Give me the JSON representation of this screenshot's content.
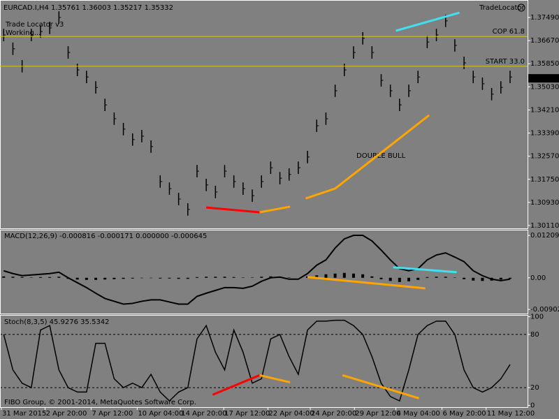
{
  "chart_data": [
    {
      "type": "ohlc",
      "title": "EURCAD.I,H4  1.35761 1.36003 1.35217 1.35332",
      "indicator_name": "Trade Locator v3",
      "status": "Working...",
      "brand": "TradeLocator",
      "annotation": "DOUBLE  BULL",
      "annotation_color": "#ffd700",
      "color": "#000000",
      "high": [
        1.3709,
        1.366,
        1.3598,
        1.3709,
        1.3721,
        1.3734,
        1.3771,
        1.3647,
        1.3585,
        1.356,
        1.3523,
        1.3461,
        1.3412,
        1.3375,
        1.3338,
        1.335,
        1.3313,
        1.3189,
        1.3164,
        1.3127,
        1.309,
        1.3226,
        1.3177,
        1.3152,
        1.3226,
        1.3189,
        1.3164,
        1.3139,
        1.3189,
        1.3238,
        1.3201,
        1.3214,
        1.3238,
        1.3276,
        1.3387,
        1.3412,
        1.3511,
        1.3585,
        1.3647,
        1.3697,
        1.3647,
        1.3548,
        1.3511,
        1.3461,
        1.3511,
        1.356,
        1.3684,
        1.3709,
        1.3759,
        1.3672,
        1.361,
        1.356,
        1.3536,
        1.3499,
        1.3523,
        1.356
      ],
      "low": [
        1.3665,
        1.3616,
        1.3554,
        1.3665,
        1.3677,
        1.369,
        1.3727,
        1.3603,
        1.3541,
        1.3516,
        1.3479,
        1.3417,
        1.3368,
        1.3331,
        1.3294,
        1.3306,
        1.3269,
        1.3145,
        1.312,
        1.3083,
        1.3046,
        1.3182,
        1.3133,
        1.3108,
        1.3182,
        1.3145,
        1.312,
        1.3095,
        1.3145,
        1.3194,
        1.3157,
        1.317,
        1.3194,
        1.3232,
        1.3343,
        1.3368,
        1.3467,
        1.3541,
        1.3603,
        1.3653,
        1.3603,
        1.3504,
        1.3467,
        1.3417,
        1.3467,
        1.3516,
        1.364,
        1.3665,
        1.3715,
        1.3628,
        1.3566,
        1.3516,
        1.3492,
        1.3455,
        1.3479,
        1.3516
      ],
      "close": [
        1.3687,
        1.3638,
        1.3576,
        1.3687,
        1.3699,
        1.3712,
        1.3749,
        1.3625,
        1.3563,
        1.3538,
        1.3501,
        1.3439,
        1.339,
        1.3353,
        1.3316,
        1.3328,
        1.3291,
        1.3167,
        1.3142,
        1.3105,
        1.3068,
        1.3204,
        1.3155,
        1.313,
        1.3204,
        1.3167,
        1.3142,
        1.3117,
        1.3167,
        1.3216,
        1.3179,
        1.3192,
        1.3216,
        1.3254,
        1.3365,
        1.339,
        1.3489,
        1.3563,
        1.3625,
        1.3675,
        1.3625,
        1.3526,
        1.3489,
        1.3439,
        1.3489,
        1.3538,
        1.3662,
        1.3687,
        1.3737,
        1.365,
        1.3588,
        1.3538,
        1.3514,
        1.3477,
        1.3501,
        1.3538
      ],
      "ylim": [
        1.3001,
        1.3811
      ],
      "yticks": [
        {
          "value": 1.3749,
          "label": "1.37490"
        },
        {
          "value": 1.3667,
          "label": "1.36670"
        },
        {
          "value": 1.3585,
          "label": "1.35850"
        },
        {
          "value": 1.3503,
          "label": "1.35030"
        },
        {
          "value": 1.3421,
          "label": "1.34210"
        },
        {
          "value": 1.3339,
          "label": "1.33390"
        },
        {
          "value": 1.3257,
          "label": "1.32570"
        },
        {
          "value": 1.3175,
          "label": "1.31750"
        },
        {
          "value": 1.3093,
          "label": "1.30930"
        },
        {
          "value": 1.3011,
          "label": "1.30110"
        }
      ],
      "current_price": 1.35332,
      "level_color": "#e6c200",
      "levels": [
        {
          "label": "COP 61.8",
          "value": 1.3682
        },
        {
          "label": "START 33.0",
          "value": 1.3576
        }
      ],
      "trendlines": [
        {
          "color": "#ff0000",
          "x": [
            22,
            27.8
          ],
          "values": [
            1.3075,
            1.3058
          ]
        },
        {
          "color": "#ffa500",
          "x": [
            27.8,
            31.1
          ],
          "values": [
            1.3058,
            1.3078
          ]
        },
        {
          "color": "#ffa500",
          "x": [
            32.8,
            36,
            46.2
          ],
          "values": [
            1.3107,
            1.3142,
            1.3402
          ]
        },
        {
          "color": "#40e0f0",
          "x": [
            42.6,
            49.5
          ],
          "values": [
            1.3702,
            1.3766
          ]
        }
      ]
    },
    {
      "type": "macd",
      "title": "MACD(12,26,9) -0.000816 -0.000171 0.000000 -0.000645",
      "color": "#000000",
      "histogram": [
        0.0004,
        0.0003,
        0.0002,
        0.0001,
        0.0002,
        0.0002,
        0.0003,
        -0.0003,
        -0.0005,
        -0.0006,
        -0.0006,
        -0.0005,
        -0.0004,
        -0.0003,
        -0.0002,
        -0.0001,
        -0.0001,
        -0.0002,
        -0.0002,
        -0.0003,
        -0.0003,
        0.0002,
        0.0003,
        0.0003,
        0.0003,
        0.0002,
        0.0001,
        0.0001,
        0.0003,
        0.0004,
        0.0003,
        0.0001,
        0,
        0.0004,
        0.0007,
        0.001,
        0.0012,
        0.0014,
        0.0012,
        0.001,
        0.0004,
        -0.0004,
        -0.0009,
        -0.0012,
        -0.001,
        -0.0006,
        0.0002,
        0.0003,
        0.0003,
        0.0001,
        -0.0004,
        -0.0008,
        -0.0009,
        -0.0008,
        -0.0005,
        -0.0003
      ],
      "values": [
        0.002,
        0.0012,
        0.0006,
        0.0008,
        0.001,
        0.0012,
        0.0016,
        0,
        -0.0014,
        -0.0028,
        -0.0044,
        -0.0059,
        -0.0067,
        -0.0075,
        -0.0073,
        -0.0067,
        -0.0063,
        -0.0063,
        -0.0069,
        -0.0075,
        -0.0075,
        -0.0053,
        -0.0044,
        -0.0036,
        -0.0028,
        -0.0028,
        -0.003,
        -0.0024,
        -0.001,
        0,
        0.0002,
        -0.0004,
        -0.0004,
        0.0012,
        0.0036,
        0.0051,
        0.0085,
        0.0111,
        0.0121,
        0.0121,
        0.0105,
        0.0079,
        0.0051,
        0.0026,
        0.002,
        0.0026,
        0.0051,
        0.0065,
        0.0071,
        0.0059,
        0.0046,
        0.002,
        0.0006,
        -0.0004,
        -0.0008,
        -0.0004
      ],
      "ylim": [
        -0.0102,
        0.0137
      ],
      "yticks": [
        0.01209,
        {
          "value": 0,
          "label": "0.00"
        },
        -0.009022
      ],
      "trendlines": [
        {
          "color": "#40e0f0",
          "x": [
            42.3,
            49.2
          ],
          "values": [
            0.003,
            0.0016
          ]
        },
        {
          "color": "#ffa500",
          "x": [
            33,
            45.8
          ],
          "values": [
            0.0002,
            -0.003
          ]
        }
      ]
    },
    {
      "type": "line",
      "title": "Stoch(8,3,5) 45.9276 35.5342",
      "copyright": "FIBO Group, © 2001-2014, MetaQuotes Software Corp.",
      "color": "#000000",
      "values": [
        80,
        40,
        25,
        20,
        85,
        90,
        40,
        20,
        15,
        15,
        70,
        70,
        30,
        20,
        25,
        20,
        35,
        15,
        5,
        15,
        20,
        75,
        90,
        60,
        40,
        85,
        60,
        25,
        30,
        75,
        80,
        55,
        35,
        85,
        95,
        95,
        96,
        96,
        90,
        80,
        55,
        25,
        10,
        5,
        40,
        80,
        90,
        95,
        95,
        80,
        40,
        20,
        15,
        20,
        30,
        46
      ],
      "ylim": [
        -2,
        102
      ],
      "yticks": [
        100,
        80,
        20,
        0
      ],
      "levels": [
        80,
        20
      ],
      "xlim": [
        -0.4,
        56.9
      ],
      "xticks": [
        {
          "value": -0.25,
          "label": "31 Mar 2015"
        },
        {
          "value": 4.5,
          "label": "2 Apr 20:00"
        },
        {
          "value": 9.5,
          "label": "7 Apr 12:00"
        },
        {
          "value": 14.5,
          "label": "10 Apr 04:00"
        },
        {
          "value": 19.2,
          "label": "14 Apr 20:00"
        },
        {
          "value": 23.9,
          "label": "17 Apr 12:00"
        },
        {
          "value": 28.7,
          "label": "22 Apr 04:00"
        },
        {
          "value": 33.3,
          "label": "24 Apr 20:00"
        },
        {
          "value": 38.1,
          "label": "29 Apr 12:00"
        },
        {
          "value": 42.6,
          "label": "4 May 04:00"
        },
        {
          "value": 47.6,
          "label": "6 May 20:00"
        },
        {
          "value": 52.4,
          "label": "11 May 12:00"
        }
      ],
      "trendlines": [
        {
          "color": "#ff0000",
          "x": [
            22.7,
            27.8
          ],
          "values": [
            12,
            34
          ]
        },
        {
          "color": "#ffa500",
          "x": [
            27.8,
            31.1
          ],
          "values": [
            34,
            26
          ]
        },
        {
          "color": "#ffa500",
          "x": [
            36.8,
            45.1
          ],
          "values": [
            34,
            8
          ]
        }
      ]
    }
  ]
}
